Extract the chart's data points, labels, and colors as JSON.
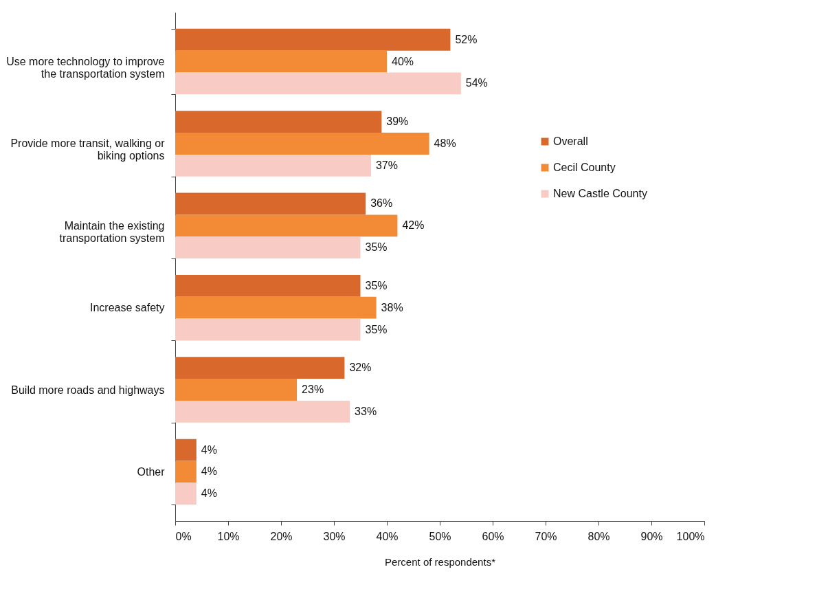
{
  "chart_data": {
    "type": "bar",
    "orientation": "horizontal",
    "xlabel": "Percent of respondents*",
    "categories": [
      "Use more technology to improve the transportation system",
      "Provide more transit, walking or biking options",
      "Maintain the existing transportation system",
      "Increase safety",
      "Build more roads and highways",
      "Other"
    ],
    "series": [
      {
        "name": "Overall",
        "color": "#d9682c",
        "values": [
          52,
          39,
          36,
          35,
          32,
          4
        ],
        "value_labels": [
          "52%",
          "39%",
          "36%",
          "35%",
          "32%",
          "4%"
        ]
      },
      {
        "name": "Cecil County",
        "color": "#f28a36",
        "values": [
          40,
          48,
          42,
          38,
          23,
          4
        ],
        "value_labels": [
          "40%",
          "48%",
          "42%",
          "38%",
          "23%",
          "4%"
        ]
      },
      {
        "name": "New Castle County",
        "color": "#f8cbc4",
        "values": [
          54,
          37,
          35,
          35,
          33,
          4
        ],
        "value_labels": [
          "54%",
          "37%",
          "35%",
          "35%",
          "33%",
          "4%"
        ]
      }
    ],
    "xlim": [
      0,
      100
    ],
    "xticks": [
      {
        "value": 0,
        "label": "0%"
      },
      {
        "value": 10,
        "label": "10%"
      },
      {
        "value": 20,
        "label": "20%"
      },
      {
        "value": 30,
        "label": "30%"
      },
      {
        "value": 40,
        "label": "40%"
      },
      {
        "value": 50,
        "label": "50%"
      },
      {
        "value": 60,
        "label": "60%"
      },
      {
        "value": 70,
        "label": "70%"
      },
      {
        "value": 80,
        "label": "80%"
      },
      {
        "value": 90,
        "label": "90%"
      },
      {
        "value": 100,
        "label": "100%"
      }
    ],
    "grid": false,
    "legend": "right"
  }
}
